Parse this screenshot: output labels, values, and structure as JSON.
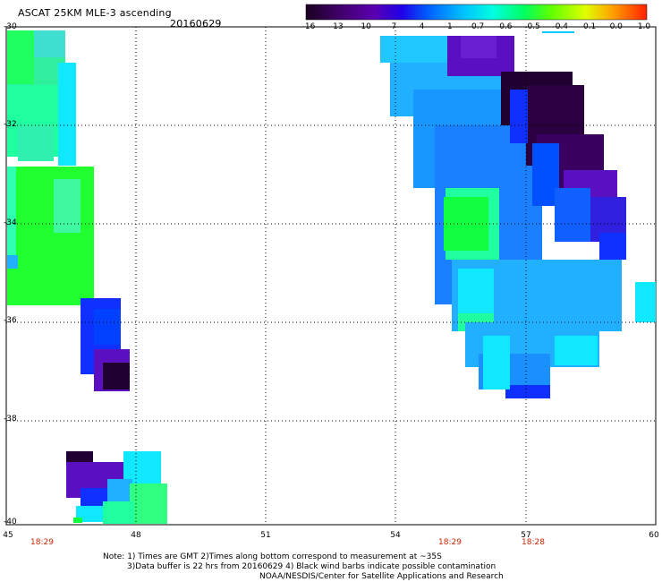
{
  "header": {
    "title": "ASCAT 25KM MLE-3 ascending",
    "date": "20160629"
  },
  "colorbar": {
    "labels": [
      "-16",
      "-13",
      "-10",
      "-7",
      "-4",
      "-1",
      "-0.7",
      "-0.6",
      "-0.5",
      "-0.4",
      "-0.1",
      "0.0",
      "1.0"
    ],
    "colors": [
      "#1a0020",
      "#3a0050",
      "#5a00a0",
      "#2000e0",
      "#0050ff",
      "#00a0ff",
      "#00e0ff",
      "#00ff90",
      "#40ff00",
      "#c0ff00",
      "#ffe000",
      "#ff8000",
      "#ff2000"
    ]
  },
  "map": {
    "y_labels": [
      "-30",
      "-32",
      "-34",
      "-36",
      "-38",
      "-40"
    ],
    "x_labels": [
      "45",
      "48",
      "51",
      "54",
      "57",
      "60"
    ],
    "lat_range": [
      -40,
      -30
    ],
    "lon_range": [
      45,
      60
    ],
    "times": [
      {
        "label": "18:29",
        "lon": 45.6
      },
      {
        "label": "18:29",
        "lon": 55.0
      },
      {
        "label": "18:28",
        "lon": 57.2
      }
    ]
  },
  "notes": {
    "line1": "Note: 1) Times are GMT 2)Times along bottom correspond to measurement at ~35S",
    "line2": "3)Data buffer is 22 hrs from 20160629 4) Black wind barbs indicate possible contamination",
    "line3": "NOAA/NESDIS/Center for Satellite Applications and Research"
  }
}
